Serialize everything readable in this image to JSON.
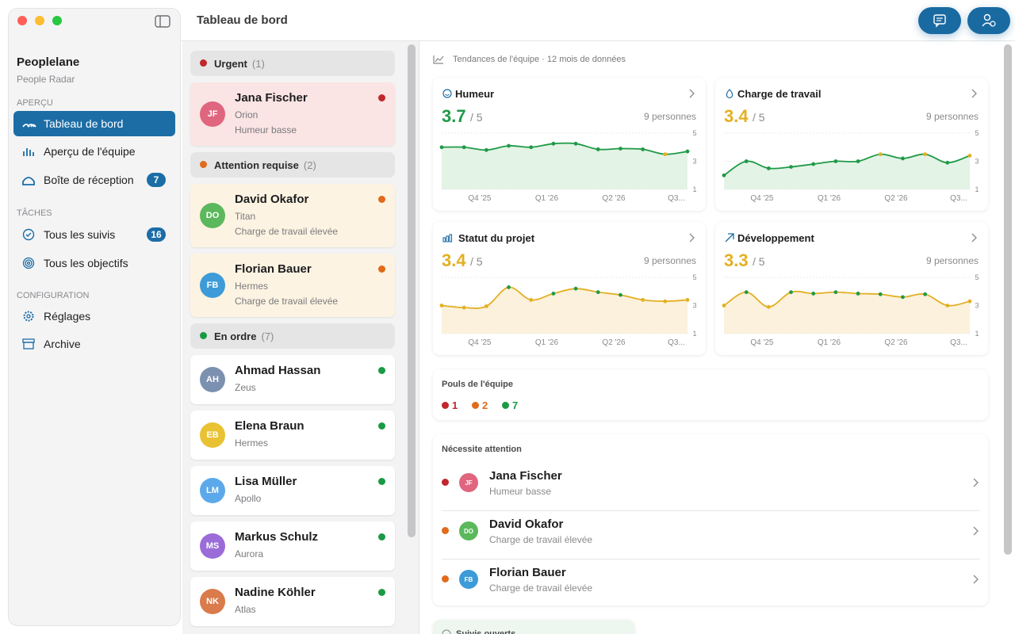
{
  "sidebar": {
    "app_name": "Peoplelane",
    "app_subtitle": "People Radar",
    "sections": [
      {
        "title": "APERÇU",
        "items": [
          {
            "label": "Tableau de bord",
            "selected": true
          },
          {
            "label": "Aperçu de l'équipe"
          },
          {
            "label": "Boîte de réception",
            "badge": 7
          }
        ]
      },
      {
        "title": "TÂCHES",
        "items": [
          {
            "label": "Tous les suivis",
            "badge": 16
          },
          {
            "label": "Tous les objectifs"
          }
        ]
      },
      {
        "title": "CONFIGURATION",
        "items": [
          {
            "label": "Réglages"
          },
          {
            "label": "Archive"
          }
        ]
      }
    ]
  },
  "header": {
    "title": "Tableau de bord"
  },
  "people_list": {
    "groups": [
      {
        "name": "Urgent",
        "count": "(1)",
        "color": "#c0282d",
        "tint": "#fbe4e4",
        "people": [
          {
            "initials": "JF",
            "name": "Jana Fischer",
            "team": "Orion",
            "note": "Humeur basse",
            "avatar": "#e0657f"
          }
        ]
      },
      {
        "name": "Attention requise",
        "count": "(2)",
        "color": "#e06b1a",
        "tint": "#fdf3e2",
        "people": [
          {
            "initials": "DO",
            "name": "David Okafor",
            "team": "Titan",
            "note": "Charge de travail élevée",
            "avatar": "#5cb85c"
          },
          {
            "initials": "FB",
            "name": "Florian Bauer",
            "team": "Hermes",
            "note": "Charge de travail élevée",
            "avatar": "#3c9bd8"
          }
        ]
      },
      {
        "name": "En ordre",
        "count": "(7)",
        "color": "#1a9a44",
        "tint": "#ffffff",
        "people": [
          {
            "initials": "AH",
            "name": "Ahmad Hassan",
            "team": "Zeus",
            "avatar": "#7c90b0"
          },
          {
            "initials": "EB",
            "name": "Elena Braun",
            "team": "Hermes",
            "avatar": "#e8c232"
          },
          {
            "initials": "LM",
            "name": "Lisa Müller",
            "team": "Apollo",
            "avatar": "#5ba9ea"
          },
          {
            "initials": "MS",
            "name": "Markus Schulz",
            "team": "Aurora",
            "avatar": "#9b6cd8"
          },
          {
            "initials": "NK",
            "name": "Nadine Köhler",
            "team": "Atlas",
            "avatar": "#d97b4b"
          }
        ]
      }
    ]
  },
  "dashboard": {
    "trend_caption": "Tendances de l'équipe · 12 mois de données",
    "charts": [
      {
        "type": "line",
        "title": "Humeur",
        "value": 3.7,
        "scale": "/ 5",
        "people": "9 personnes",
        "color": "#1f9a47",
        "fill": "#e3f3e6",
        "values": [
          4.0,
          4.0,
          3.8,
          4.1,
          4.0,
          4.25,
          4.25,
          3.85,
          3.9,
          3.85,
          3.5,
          3.7
        ],
        "point_colors": [
          "#1f9a47",
          "#1f9a47",
          "#1f9a47",
          "#1f9a47",
          "#1f9a47",
          "#1f9a47",
          "#1f9a47",
          "#1f9a47",
          "#1f9a47",
          "#1f9a47",
          "#e3b023",
          "#1f9a47"
        ],
        "ylim": [
          1,
          5
        ],
        "yticks": [
          5,
          3,
          1
        ],
        "xlabels": [
          "Q4 '25",
          "Q1 '26",
          "Q2 '26",
          "Q3..."
        ]
      },
      {
        "type": "line",
        "title": "Charge de travail",
        "value": 3.4,
        "scale": "/ 5",
        "people": "9 personnes",
        "color": "#1f9a47",
        "fill": "#e3f3e6",
        "values": [
          2.0,
          3.0,
          2.5,
          2.6,
          2.8,
          3.0,
          3.0,
          3.5,
          3.2,
          3.5,
          2.9,
          3.4
        ],
        "point_colors": [
          "#1f9a47",
          "#1f9a47",
          "#1f9a47",
          "#1f9a47",
          "#1f9a47",
          "#1f9a47",
          "#1f9a47",
          "#e3b023",
          "#1f9a47",
          "#e3b023",
          "#1f9a47",
          "#e3b023"
        ],
        "ylim": [
          1,
          5
        ],
        "yticks": [
          5,
          3,
          1
        ],
        "xlabels": [
          "Q4 '25",
          "Q1 '26",
          "Q2 '26",
          "Q3..."
        ]
      },
      {
        "type": "line",
        "title": "Statut du projet",
        "value": 3.4,
        "scale": "/ 5",
        "people": "9 personnes",
        "color": "#e3b023",
        "fill": "#fbf1dc",
        "values": [
          3.0,
          2.85,
          2.95,
          4.3,
          3.4,
          3.85,
          4.2,
          3.95,
          3.75,
          3.4,
          3.3,
          3.4
        ],
        "point_colors": [
          "#e3b023",
          "#e3b023",
          "#e3b023",
          "#1f9a47",
          "#e3b023",
          "#1f9a47",
          "#1f9a47",
          "#1f9a47",
          "#1f9a47",
          "#e3b023",
          "#e3b023",
          "#e3b023"
        ],
        "ylim": [
          1,
          5
        ],
        "yticks": [
          5,
          3,
          1
        ],
        "xlabels": [
          "Q4 '25",
          "Q1 '26",
          "Q2 '26",
          "Q3..."
        ]
      },
      {
        "type": "line",
        "title": "Développement",
        "value": 3.3,
        "scale": "/ 5",
        "people": "9 personnes",
        "color": "#e3b023",
        "fill": "#fbf1dc",
        "values": [
          3.0,
          3.95,
          2.9,
          3.95,
          3.85,
          3.95,
          3.85,
          3.8,
          3.6,
          3.8,
          3.0,
          3.3
        ],
        "point_colors": [
          "#e3b023",
          "#1f9a47",
          "#e3b023",
          "#1f9a47",
          "#1f9a47",
          "#1f9a47",
          "#1f9a47",
          "#1f9a47",
          "#1f9a47",
          "#1f9a47",
          "#e3b023",
          "#e3b023"
        ],
        "ylim": [
          1,
          5
        ],
        "yticks": [
          5,
          3,
          1
        ],
        "xlabels": [
          "Q4 '25",
          "Q1 '26",
          "Q2 '26",
          "Q3..."
        ]
      }
    ],
    "pulse": {
      "title": "Pouls de l'équipe",
      "counts": [
        {
          "value": 1,
          "color": "#c0282d"
        },
        {
          "value": 2,
          "color": "#e06b1a"
        },
        {
          "value": 7,
          "color": "#1a9a44"
        }
      ]
    },
    "attention": {
      "title": "Nécessite attention",
      "items": [
        {
          "initials": "JF",
          "name": "Jana Fischer",
          "note": "Humeur basse",
          "color": "#c0282d",
          "avatar": "#e0657f"
        },
        {
          "initials": "DO",
          "name": "David Okafor",
          "note": "Charge de travail élevée",
          "color": "#e06b1a",
          "avatar": "#5cb85c"
        },
        {
          "initials": "FB",
          "name": "Florian Bauer",
          "note": "Charge de travail élevée",
          "color": "#e06b1a",
          "avatar": "#3c9bd8"
        }
      ]
    },
    "followups": {
      "title": "Suivis ouverts"
    }
  }
}
